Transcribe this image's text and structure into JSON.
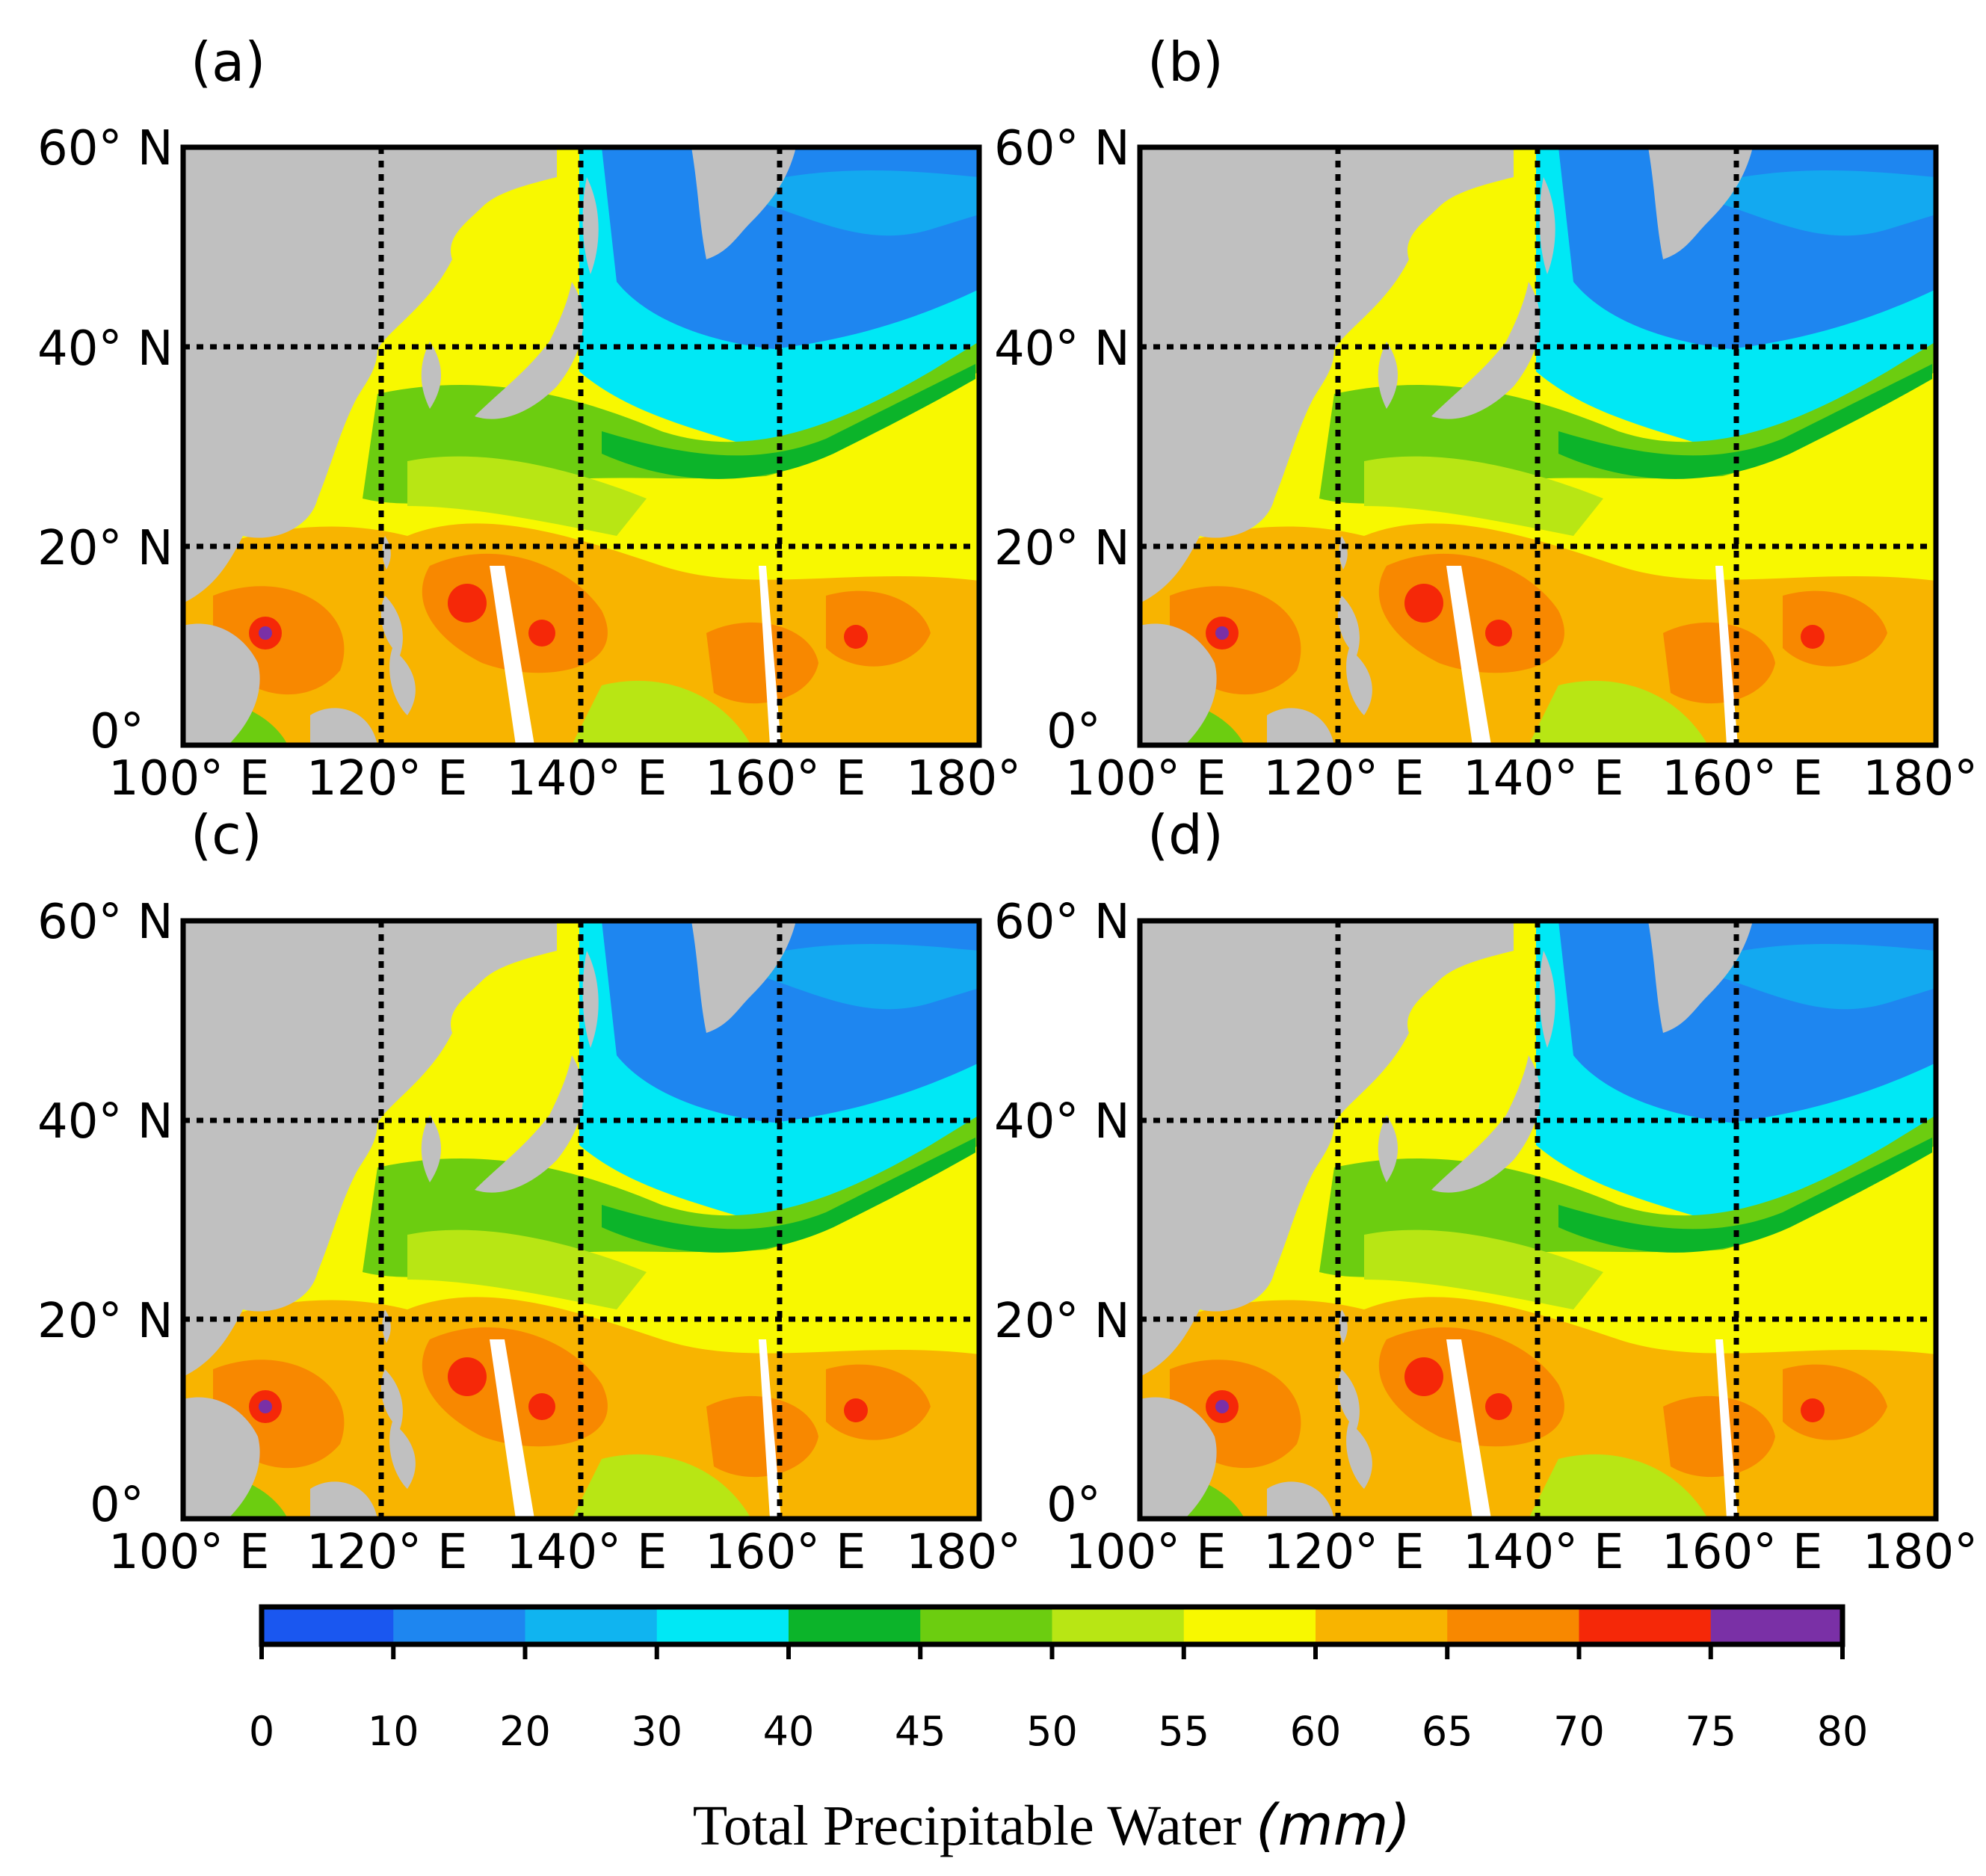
{
  "figure": {
    "panels": [
      {
        "id": "a",
        "label": "(a)"
      },
      {
        "id": "b",
        "label": "(b)"
      },
      {
        "id": "c",
        "label": "(c)"
      },
      {
        "id": "d",
        "label": "(d)"
      }
    ],
    "lat_ticks": [
      "60° N",
      "40° N",
      "20° N",
      "0°"
    ],
    "lon_ticks": [
      "100°",
      "E",
      "120°",
      "E",
      "140°",
      "E",
      "160°",
      "E",
      "180°"
    ],
    "colorbar": {
      "title": "Total Precipitable Water",
      "unit": "(mm)",
      "tick_labels": [
        "0",
        "10",
        "20",
        "30",
        "40",
        "45",
        "50",
        "55",
        "60",
        "65",
        "70",
        "75",
        "80"
      ],
      "colors": [
        "#1a57f0",
        "#1e86f0",
        "#10b4f0",
        "#00e8f5",
        "#0cb42a",
        "#6ccd10",
        "#b8e614",
        "#f8f800",
        "#f8b400",
        "#f88800",
        "#f52808",
        "#7a30a6"
      ]
    },
    "colors": {
      "land": "#c0c0c0",
      "coast": "#ffffff"
    }
  },
  "chart_data": {
    "type": "heatmap",
    "title": "",
    "xlabel": "",
    "ylabel": "",
    "xlim": [
      100,
      180
    ],
    "ylim": [
      0,
      60
    ],
    "x_gridlines": [
      120,
      140,
      160
    ],
    "y_gridlines": [
      20,
      40
    ],
    "color_levels": [
      0,
      10,
      20,
      30,
      40,
      45,
      50,
      55,
      60,
      65,
      70,
      75,
      80
    ],
    "colorbar_label": "Total Precipitable Water (mm)",
    "panels": [
      "(a)",
      "(b)",
      "(c)",
      "(d)"
    ]
  }
}
